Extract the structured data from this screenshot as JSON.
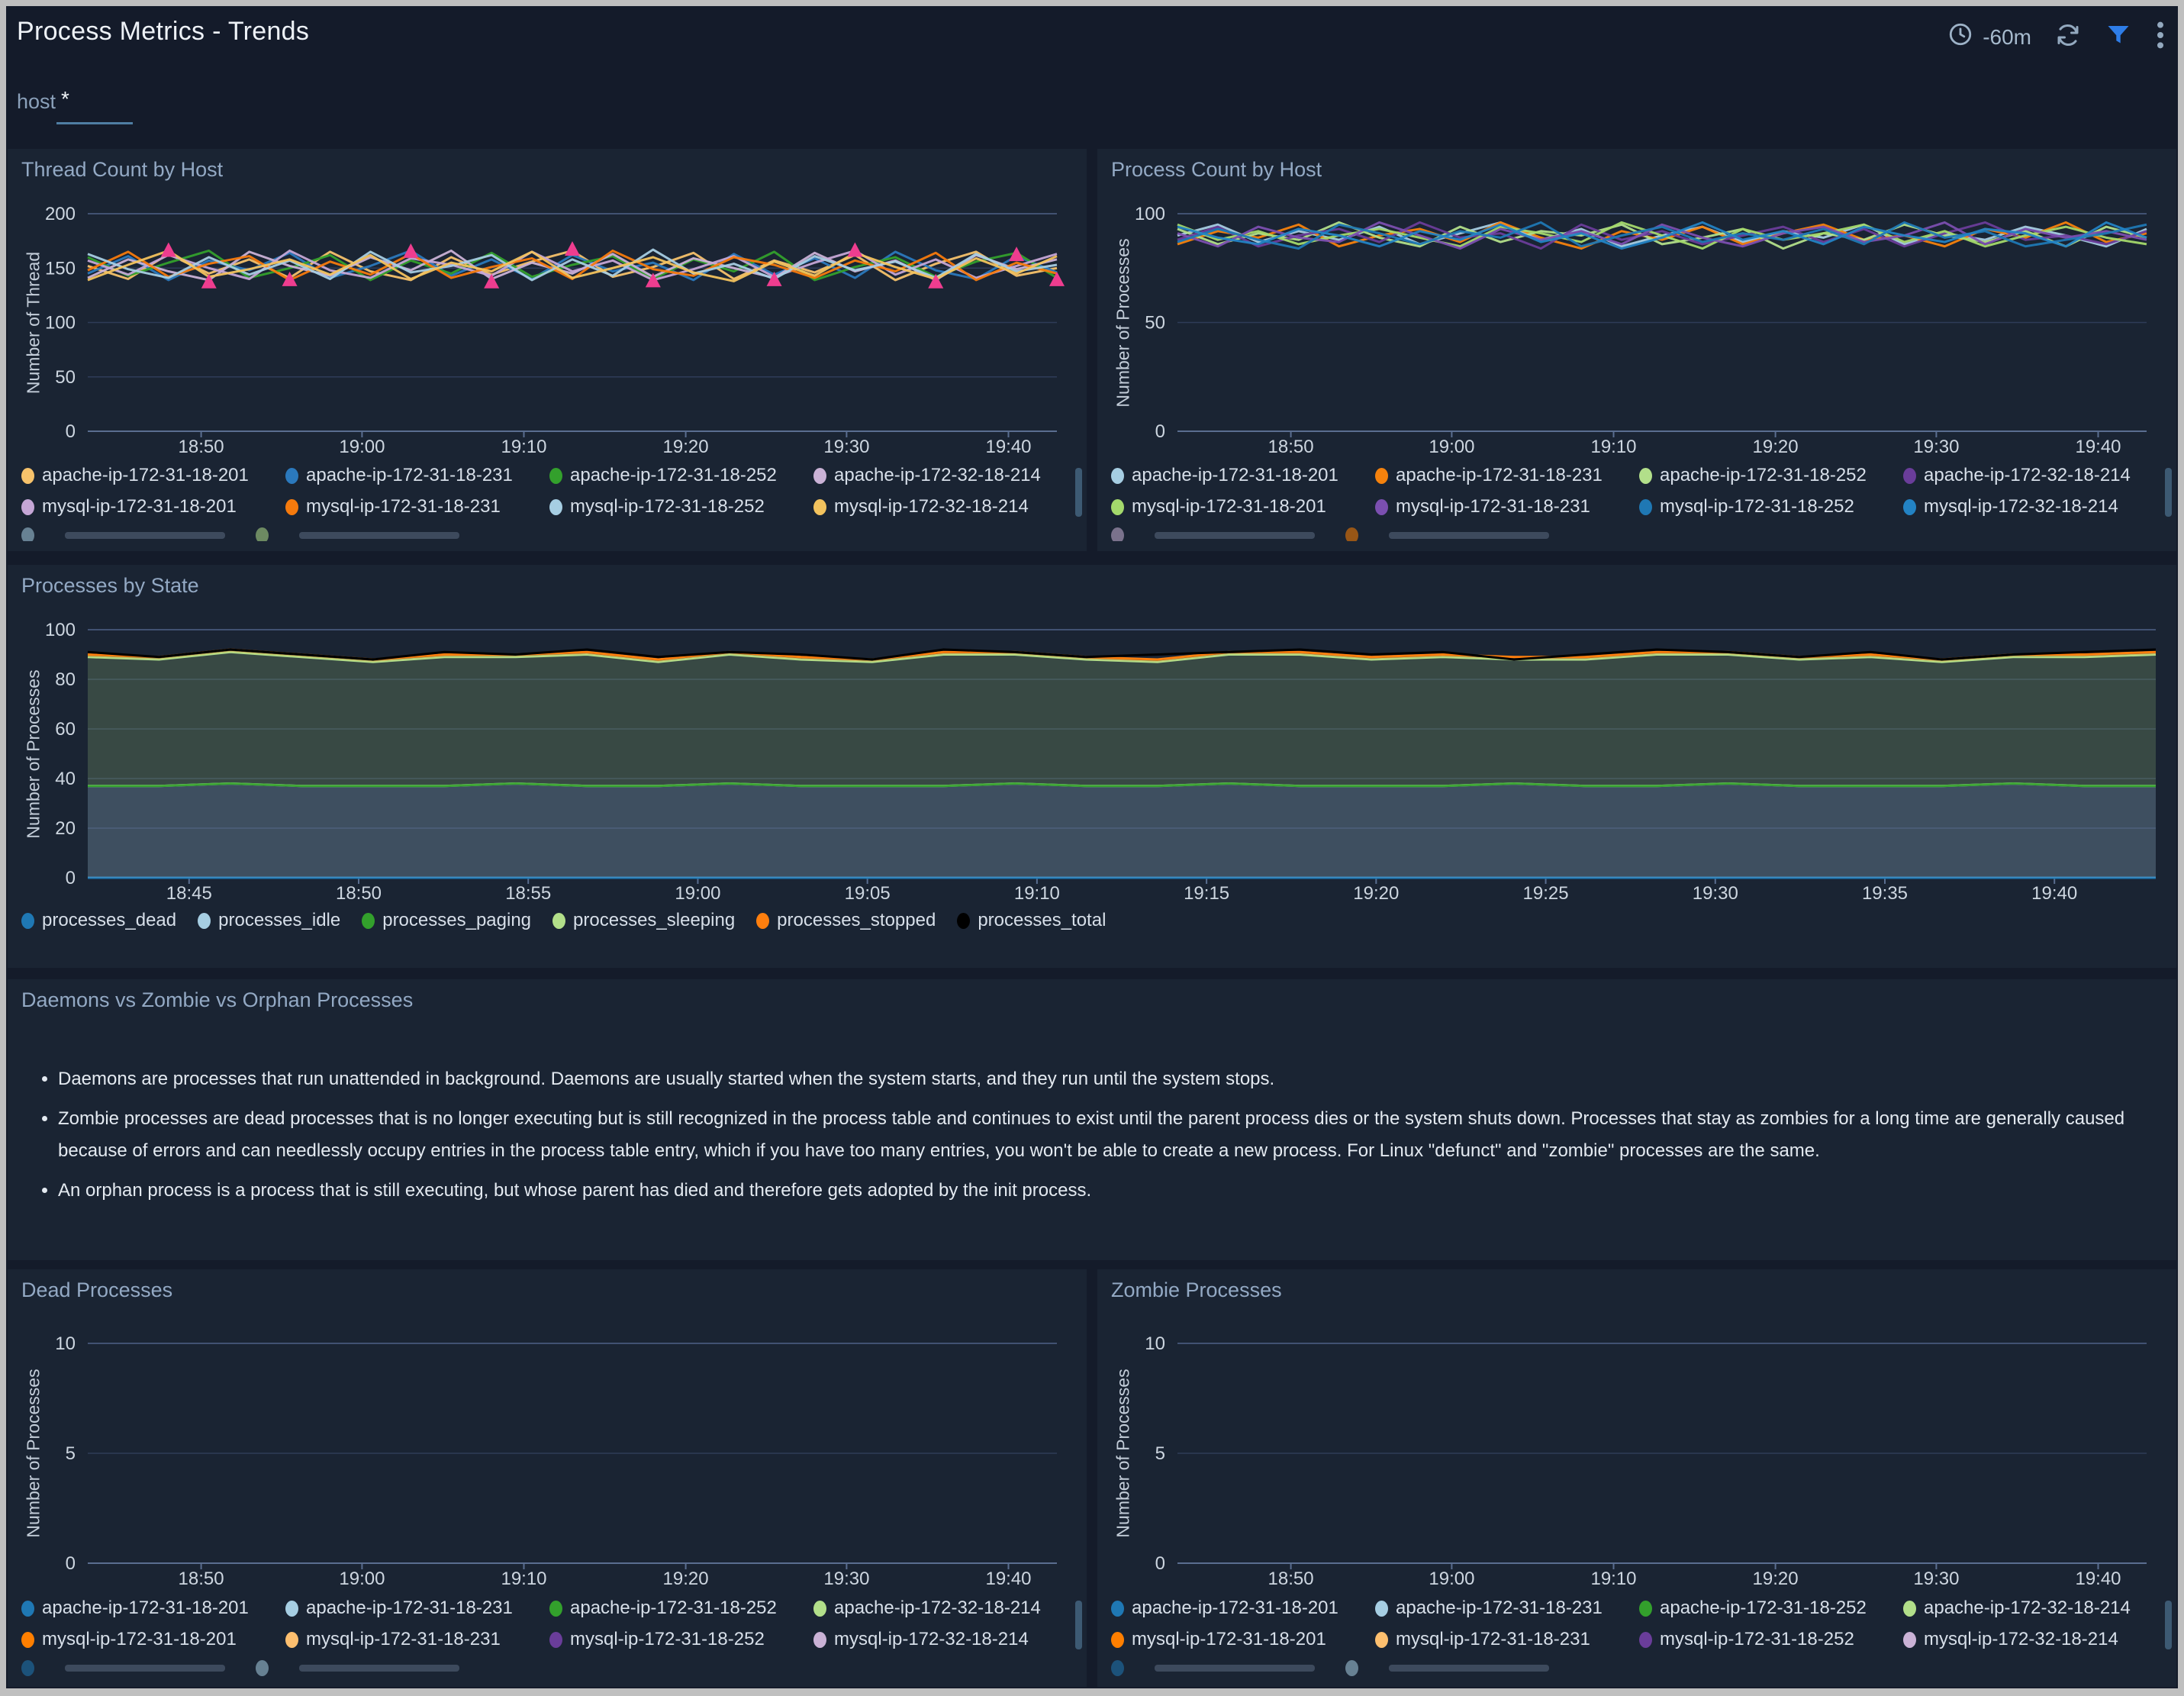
{
  "header": {
    "title": "Process Metrics - Trends",
    "time_range": "-60m",
    "icons": [
      "clock-icon",
      "refresh-icon",
      "filter-icon",
      "kebab-menu-icon"
    ]
  },
  "colors": {
    "accent_filter_blue": "#2e7de8",
    "panel_bg": "#1a2433",
    "page_bg": "#141b2a"
  },
  "filter": {
    "label": "host",
    "value": "*"
  },
  "text_panel": {
    "title": "Daemons vs Zombie vs Orphan Processes",
    "bullets": [
      "Daemons are processes that run unattended in background. Daemons are usually started when the system starts, and they run until the system stops.",
      "Zombie processes are dead processes that is no longer executing but is still recognized in the process table and continues to exist until the parent process dies or the system shuts down. Processes that stay as zombies for a long time are generally caused because of errors and can needlessly occupy entries in the process table entry, which if you have too many entries, you won't be able to create a new process. For Linux \"defunct\" and \"zombie\" processes are the same.",
      "An orphan process is a process that is still executing, but whose parent has died and therefore gets adopted by the init process."
    ]
  },
  "chart_data": [
    {
      "id": "thread",
      "type": "line",
      "title": "Thread Count by Host",
      "ylabel": "Number of Thread",
      "ylim": [
        0,
        200
      ],
      "yticks": [
        0,
        50,
        100,
        150,
        200
      ],
      "xticks": [
        "18:50",
        "19:00",
        "19:10",
        "19:20",
        "19:30",
        "19:40"
      ],
      "x_window": [
        "18:43",
        "19:43"
      ],
      "series": [
        {
          "name": "apache-ip-172-31-18-201",
          "color": "#f6c26b",
          "values": [
            152,
            140,
            163,
            145,
            158,
            141,
            165,
            147,
            139,
            160,
            144,
            156,
            166,
            142,
            151,
            164,
            140,
            157,
            146,
            162,
            139,
            154,
            165,
            143,
            150
          ]
        },
        {
          "name": "apache-ip-172-31-18-231",
          "color": "#2b79bd",
          "values": [
            145,
            161,
            139,
            157,
            148,
            164,
            141,
            152,
            166,
            143,
            158,
            140,
            162,
            147,
            155,
            139,
            163,
            144,
            159,
            141,
            165,
            148,
            140,
            161,
            146
          ]
        },
        {
          "name": "apache-ip-172-31-18-252",
          "color": "#33a02c",
          "values": [
            160,
            143,
            155,
            166,
            141,
            150,
            162,
            139,
            157,
            145,
            164,
            142,
            153,
            161,
            140,
            158,
            147,
            165,
            139,
            151,
            160,
            142,
            156,
            164,
            141
          ]
        },
        {
          "name": "apache-ip-172-32-18-214",
          "color": "#cab2d6",
          "values": [
            141,
            158,
            147,
            139,
            165,
            152,
            143,
            160,
            148,
            166,
            140,
            155,
            145,
            163,
            142,
            159,
            150,
            141,
            164,
            147,
            157,
            139,
            162,
            149,
            158
          ]
        },
        {
          "name": "mysql-ip-172-31-18-201",
          "color": "#c5a6d6",
          "values": [
            157,
            144,
            162,
            150,
            140,
            166,
            148,
            141,
            159,
            153,
            143,
            165,
            147,
            157,
            139,
            149,
            161,
            142,
            155,
            166,
            144,
            158,
            141,
            152,
            163
          ]
        },
        {
          "name": "mysql-ip-172-31-18-231",
          "color": "#f57a0d",
          "values": [
            148,
            165,
            142,
            154,
            161,
            139,
            156,
            144,
            163,
            141,
            151,
            159,
            140,
            166,
            149,
            143,
            160,
            153,
            141,
            157,
            147,
            164,
            139,
            155,
            145
          ]
        },
        {
          "name": "mysql-ip-172-31-18-252",
          "color": "#a6cee3",
          "values": [
            163,
            149,
            141,
            160,
            144,
            157,
            140,
            165,
            146,
            152,
            162,
            139,
            158,
            143,
            167,
            145,
            154,
            140,
            161,
            148,
            156,
            141,
            163,
            147,
            153
          ]
        },
        {
          "name": "mysql-ip-172-32-18-214",
          "color": "#f3c35e",
          "values": [
            139,
            153,
            166,
            142,
            149,
            158,
            144,
            162,
            140,
            155,
            147,
            165,
            141,
            150,
            160,
            146,
            138,
            156,
            143,
            164,
            151,
            140,
            159,
            145,
            161
          ]
        }
      ],
      "marker_series": {
        "name": "threshold-markers",
        "shape": "triangle",
        "color": "#ee3d8f",
        "points": [
          {
            "i": 2,
            "v": 166
          },
          {
            "i": 3,
            "v": 137
          },
          {
            "i": 5,
            "v": 139
          },
          {
            "i": 8,
            "v": 165
          },
          {
            "i": 10,
            "v": 137
          },
          {
            "i": 12,
            "v": 167
          },
          {
            "i": 14,
            "v": 138
          },
          {
            "i": 17,
            "v": 139
          },
          {
            "i": 19,
            "v": 166
          },
          {
            "i": 21,
            "v": 137
          },
          {
            "i": 23,
            "v": 162
          },
          {
            "i": 24,
            "v": 139
          }
        ]
      },
      "legend_overflow_dots": [
        "#a6cee3",
        "#b2df8a"
      ]
    },
    {
      "id": "process",
      "type": "line",
      "title": "Process Count by Host",
      "ylabel": "Number of Processes",
      "ylim": [
        0,
        100
      ],
      "yticks": [
        0,
        50,
        100
      ],
      "xticks": [
        "18:50",
        "19:00",
        "19:10",
        "19:20",
        "19:30",
        "19:40"
      ],
      "x_window": [
        "18:43",
        "19:43"
      ],
      "series": [
        {
          "name": "apache-ip-172-31-18-201",
          "color": "#a6cee3",
          "values": [
            90,
            95,
            87,
            92,
            88,
            94,
            86,
            91,
            96,
            88,
            93,
            85,
            90,
            94,
            87,
            92,
            89,
            95,
            86,
            91,
            88,
            94,
            90,
            85,
            93
          ]
        },
        {
          "name": "apache-ip-172-31-18-231",
          "color": "#f5820d",
          "values": [
            86,
            92,
            89,
            95,
            85,
            90,
            93,
            87,
            96,
            89,
            84,
            92,
            88,
            94,
            86,
            91,
            95,
            88,
            90,
            85,
            93,
            89,
            96,
            87,
            91
          ]
        },
        {
          "name": "apache-ip-172-31-18-252",
          "color": "#b2df8a",
          "values": [
            93,
            86,
            91,
            88,
            96,
            89,
            85,
            94,
            87,
            92,
            90,
            95,
            86,
            89,
            93,
            84,
            91,
            88,
            95,
            90,
            87,
            92,
            85,
            94,
            89
          ]
        },
        {
          "name": "apache-ip-172-32-18-214",
          "color": "#6a3d9a",
          "values": [
            88,
            94,
            85,
            90,
            93,
            87,
            96,
            89,
            91,
            84,
            95,
            88,
            92,
            86,
            90,
            94,
            87,
            93,
            85,
            91,
            96,
            88,
            90,
            86,
            92
          ]
        },
        {
          "name": "mysql-ip-172-31-18-201",
          "color": "#a4d96c",
          "values": [
            95,
            88,
            92,
            86,
            90,
            93,
            89,
            85,
            94,
            91,
            87,
            96,
            90,
            84,
            93,
            88,
            91,
            95,
            87,
            92,
            85,
            90,
            94,
            89,
            86
          ]
        },
        {
          "name": "mysql-ip-172-31-18-231",
          "color": "#7b4fb0",
          "values": [
            91,
            85,
            94,
            89,
            87,
            96,
            90,
            84,
            93,
            88,
            92,
            86,
            95,
            89,
            85,
            91,
            94,
            87,
            90,
            96,
            86,
            93,
            89,
            92,
            88
          ]
        },
        {
          "name": "mysql-ip-172-31-18-252",
          "color": "#1f78b4",
          "values": [
            87,
            93,
            88,
            84,
            95,
            91,
            86,
            92,
            89,
            96,
            85,
            90,
            94,
            87,
            91,
            88,
            93,
            86,
            96,
            89,
            92,
            85,
            88,
            91,
            95
          ]
        },
        {
          "name": "mysql-ip-172-32-18-214",
          "color": "#2383c4",
          "values": [
            94,
            89,
            86,
            93,
            90,
            85,
            92,
            88,
            95,
            87,
            91,
            84,
            89,
            96,
            88,
            92,
            86,
            94,
            90,
            87,
            93,
            91,
            85,
            96,
            89
          ]
        }
      ],
      "legend_overflow_dots": [
        "#cab2d6",
        "#ff7f00"
      ]
    },
    {
      "id": "state",
      "type": "area-stacked",
      "title": "Processes by State",
      "ylabel": "Number of Processes",
      "ylim": [
        0,
        100
      ],
      "yticks": [
        0,
        20,
        40,
        60,
        80,
        100
      ],
      "xticks": [
        "18:45",
        "18:50",
        "18:55",
        "19:00",
        "19:05",
        "19:10",
        "19:15",
        "19:20",
        "19:25",
        "19:30",
        "19:35",
        "19:40"
      ],
      "x_window": [
        "18:42",
        "19:43"
      ],
      "series": [
        {
          "name": "processes_dead",
          "color": "#1f78b4",
          "fill_opacity": 0,
          "values": [
            0,
            0,
            0,
            0,
            0,
            0,
            0,
            0,
            0,
            0,
            0,
            0,
            0,
            0,
            0,
            0,
            0,
            0,
            0,
            0,
            0,
            0,
            0,
            0,
            0,
            0,
            0,
            0,
            0,
            0
          ]
        },
        {
          "name": "processes_idle",
          "color": "#a6cee3",
          "fill_opacity": 0.26,
          "values": [
            37,
            37,
            38,
            37,
            37,
            37,
            38,
            37,
            37,
            38,
            37,
            37,
            37,
            38,
            37,
            37,
            38,
            37,
            37,
            37,
            38,
            37,
            37,
            38,
            37,
            37,
            37,
            38,
            37,
            37
          ]
        },
        {
          "name": "processes_paging",
          "color": "#33a02c",
          "fill_opacity": 0,
          "values": [
            0,
            0,
            0,
            0,
            0,
            0,
            0,
            0,
            0,
            0,
            0,
            0,
            0,
            0,
            0,
            0,
            0,
            0,
            0,
            0,
            0,
            0,
            0,
            0,
            0,
            0,
            0,
            0,
            0,
            0
          ]
        },
        {
          "name": "processes_sleeping",
          "color": "#b2df8a",
          "fill_opacity": 0.2,
          "values": [
            52,
            51,
            53,
            52,
            50,
            52,
            51,
            53,
            50,
            52,
            51,
            50,
            53,
            52,
            51,
            50,
            52,
            53,
            51,
            52,
            50,
            51,
            53,
            52,
            51,
            52,
            50,
            51,
            52,
            53
          ]
        },
        {
          "name": "processes_stopped",
          "color": "#ff7f0e",
          "fill_opacity": 0.22,
          "values": [
            1,
            1,
            1,
            1,
            1,
            1,
            1,
            1,
            1,
            1,
            1,
            1,
            1,
            1,
            1,
            1,
            1,
            1,
            1,
            1,
            1,
            1,
            1,
            1,
            1,
            1,
            1,
            1,
            1,
            1
          ]
        }
      ],
      "line_series": [
        {
          "name": "processes_total",
          "color": "#000000",
          "values": [
            91,
            89,
            92,
            90,
            88,
            91,
            90,
            92,
            89,
            91,
            90,
            88,
            92,
            91,
            89,
            90,
            91,
            92,
            90,
            91,
            88,
            90,
            92,
            91,
            89,
            91,
            88,
            90,
            91,
            92
          ]
        }
      ]
    },
    {
      "id": "dead",
      "type": "line",
      "title": "Dead Processes",
      "ylabel": "Number of Processes",
      "ylim": [
        0,
        10
      ],
      "yticks": [
        0,
        5,
        10
      ],
      "xticks": [
        "18:50",
        "19:00",
        "19:10",
        "19:20",
        "19:30",
        "19:40"
      ],
      "x_window": [
        "18:43",
        "19:43"
      ],
      "series": [
        {
          "name": "apache-ip-172-31-18-201",
          "color": "#1f78b4",
          "values": []
        },
        {
          "name": "apache-ip-172-31-18-231",
          "color": "#a6cee3",
          "values": []
        },
        {
          "name": "apache-ip-172-31-18-252",
          "color": "#33a02c",
          "values": []
        },
        {
          "name": "apache-ip-172-32-18-214",
          "color": "#b2df8a",
          "values": []
        },
        {
          "name": "mysql-ip-172-31-18-201",
          "color": "#ff7f00",
          "values": []
        },
        {
          "name": "mysql-ip-172-31-18-231",
          "color": "#fdbf6f",
          "values": []
        },
        {
          "name": "mysql-ip-172-31-18-252",
          "color": "#6a3d9a",
          "values": []
        },
        {
          "name": "mysql-ip-172-32-18-214",
          "color": "#cab2d6",
          "values": []
        }
      ],
      "legend_overflow_dots": [
        "#1f78b4",
        "#a6cee3"
      ]
    },
    {
      "id": "zombie",
      "type": "line",
      "title": "Zombie Processes",
      "ylabel": "Number of Processes",
      "ylim": [
        0,
        10
      ],
      "yticks": [
        0,
        5,
        10
      ],
      "xticks": [
        "18:50",
        "19:00",
        "19:10",
        "19:20",
        "19:30",
        "19:40"
      ],
      "x_window": [
        "18:43",
        "19:43"
      ],
      "series": [
        {
          "name": "apache-ip-172-31-18-201",
          "color": "#1f78b4",
          "values": []
        },
        {
          "name": "apache-ip-172-31-18-231",
          "color": "#a6cee3",
          "values": []
        },
        {
          "name": "apache-ip-172-31-18-252",
          "color": "#33a02c",
          "values": []
        },
        {
          "name": "apache-ip-172-32-18-214",
          "color": "#b2df8a",
          "values": []
        },
        {
          "name": "mysql-ip-172-31-18-201",
          "color": "#ff7f00",
          "values": []
        },
        {
          "name": "mysql-ip-172-31-18-231",
          "color": "#fdbf6f",
          "values": []
        },
        {
          "name": "mysql-ip-172-31-18-252",
          "color": "#6a3d9a",
          "values": []
        },
        {
          "name": "mysql-ip-172-32-18-214",
          "color": "#cab2d6",
          "values": []
        }
      ],
      "legend_overflow_dots": [
        "#1f78b4",
        "#a6cee3"
      ]
    }
  ]
}
